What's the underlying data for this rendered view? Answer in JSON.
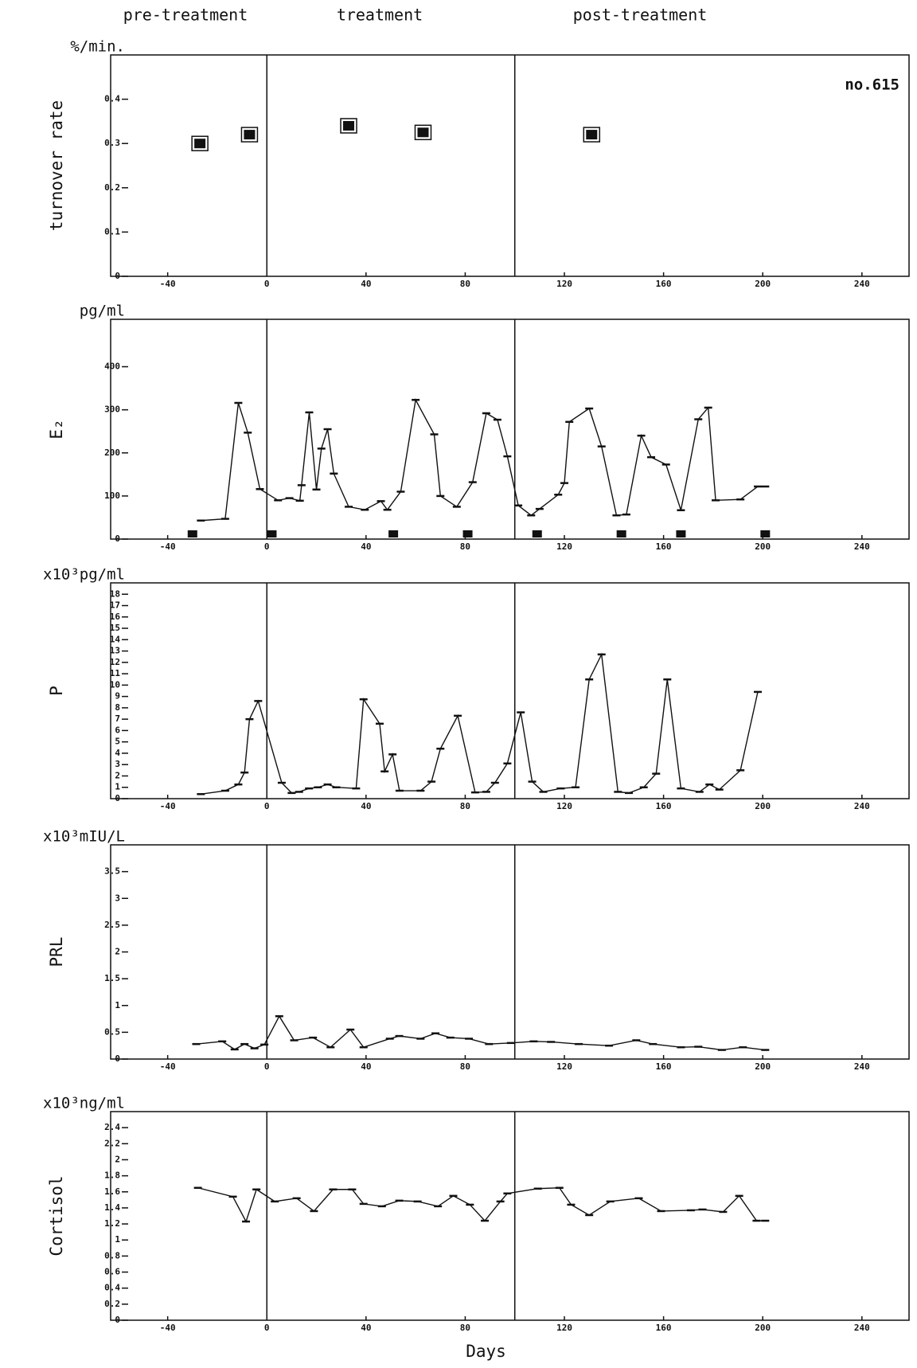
{
  "header": [
    "pre-treatment",
    "treatment",
    "post-treatment"
  ],
  "chart_data": [
    {
      "type": "scatter",
      "units": "%/min.",
      "ylabel": "turnover rate",
      "annotation": "no.615",
      "x": [
        -27,
        -7,
        33,
        63,
        131
      ],
      "values": [
        0.3,
        0.32,
        0.34,
        0.325,
        0.32
      ],
      "xlim": [
        -63,
        259
      ],
      "xticks": [
        -40,
        0,
        40,
        80,
        120,
        160,
        200,
        240
      ],
      "ylim": [
        0,
        0.5
      ],
      "yticks": [
        0,
        0.1,
        0.2,
        0.3,
        0.4
      ],
      "vlines": [
        0,
        100
      ],
      "color": "#111111"
    },
    {
      "type": "line",
      "units": "pg/ml",
      "ylabel": "E₂",
      "x": [
        -26.6,
        -16.8,
        -11.5,
        -7.7,
        -2.8,
        4.5,
        9.1,
        13.3,
        14,
        17.1,
        20,
        22,
        24.5,
        27,
        33,
        39.5,
        46,
        48.6,
        54,
        60,
        67.5,
        70,
        76.6,
        83,
        88.5,
        93,
        97,
        101.4,
        106.6,
        110,
        117.5,
        120,
        122,
        130,
        135,
        141,
        145,
        151,
        155,
        161,
        167,
        174,
        178,
        181,
        191,
        198,
        201
      ],
      "values": [
        43,
        47,
        316,
        247,
        116,
        90,
        95,
        89,
        125,
        294,
        115,
        210,
        255,
        152,
        75,
        68,
        88,
        68,
        110,
        323,
        243,
        100,
        75,
        132,
        292,
        277,
        192,
        78,
        55,
        70,
        103,
        130,
        272,
        303,
        215,
        55,
        57,
        240,
        190,
        173,
        67,
        278,
        305,
        90,
        92,
        122,
        122
      ],
      "event_days": [
        -30,
        2,
        51,
        81,
        109,
        143,
        167,
        201
      ],
      "xlim": [
        -63,
        259
      ],
      "xticks": [
        -40,
        0,
        40,
        80,
        120,
        160,
        200,
        240
      ],
      "ylim": [
        0,
        510
      ],
      "yticks": [
        0,
        100,
        200,
        300,
        400
      ],
      "vlines": [
        0,
        100
      ],
      "color": "#111111"
    },
    {
      "type": "line",
      "units": "x10³pg/ml",
      "ylabel": "P",
      "x": [
        -26.6,
        -16.8,
        -11.5,
        -9,
        -7,
        -3.5,
        6,
        10,
        13,
        17,
        20.6,
        24.5,
        28,
        36,
        39,
        45.5,
        47.5,
        50.7,
        53.5,
        62,
        66.4,
        70,
        77,
        84,
        88.5,
        92,
        97,
        102.4,
        107,
        111.5,
        118.5,
        124.5,
        130,
        135,
        141.6,
        146,
        152,
        157,
        161.5,
        167,
        174.5,
        178.5,
        182.5,
        191,
        198
      ],
      "values": [
        0.4,
        0.7,
        1.25,
        2.3,
        7,
        8.6,
        1.4,
        0.5,
        0.6,
        0.9,
        1,
        1.25,
        1,
        0.9,
        8.75,
        6.6,
        2.4,
        3.9,
        0.7,
        0.7,
        1.5,
        4.4,
        7.3,
        0.55,
        0.6,
        1.4,
        3.1,
        7.6,
        1.5,
        0.6,
        0.9,
        1,
        10.5,
        12.7,
        0.6,
        0.5,
        1,
        2.2,
        10.5,
        0.9,
        0.6,
        1.25,
        0.8,
        2.5,
        9.4
      ],
      "xlim": [
        -63,
        259
      ],
      "xticks": [
        -40,
        0,
        40,
        80,
        120,
        160,
        200,
        240
      ],
      "ylim": [
        0,
        19
      ],
      "yticks": [
        0,
        1,
        2,
        3,
        4,
        5,
        6,
        7,
        8,
        9,
        10,
        11,
        12,
        13,
        14,
        15,
        16,
        17,
        18
      ],
      "vlines": [
        0,
        100
      ],
      "color": "#111111"
    },
    {
      "type": "line",
      "units": "x10³mIU/L",
      "ylabel": "PRL",
      "x": [
        -28.5,
        -18,
        -13,
        -9,
        -5,
        -1,
        5,
        11,
        18.6,
        25.7,
        33.7,
        39,
        49.6,
        53.4,
        62,
        68,
        74,
        81.5,
        89.6,
        98.4,
        107.6,
        114.6,
        125.8,
        138,
        149,
        155.7,
        167,
        174,
        183.5,
        192,
        201
      ],
      "values": [
        0.28,
        0.33,
        0.18,
        0.28,
        0.2,
        0.27,
        0.8,
        0.35,
        0.4,
        0.22,
        0.55,
        0.22,
        0.38,
        0.43,
        0.38,
        0.48,
        0.4,
        0.38,
        0.28,
        0.3,
        0.33,
        0.32,
        0.28,
        0.25,
        0.35,
        0.28,
        0.22,
        0.23,
        0.17,
        0.22,
        0.17
      ],
      "xlim": [
        -63,
        259
      ],
      "xticks": [
        -40,
        0,
        40,
        80,
        120,
        160,
        200,
        240
      ],
      "ylim": [
        0,
        4
      ],
      "yticks": [
        0,
        0.5,
        1,
        1.5,
        2,
        2.5,
        3,
        3.5
      ],
      "vlines": [
        0,
        100
      ],
      "color": "#111111"
    },
    {
      "type": "line",
      "units": "x10³ng/ml",
      "ylabel": "Cortisol",
      "xlabel": "Days",
      "x": [
        -27.8,
        -13.7,
        -8.4,
        -4.2,
        3.2,
        12,
        19,
        26.7,
        34.4,
        39,
        46.4,
        53.4,
        60.8,
        69,
        75.2,
        81.9,
        87.9,
        94.2,
        97,
        109.3,
        118,
        122.7,
        130,
        138.5,
        150,
        159,
        171,
        175.7,
        184,
        190.5,
        197.5,
        201
      ],
      "values": [
        1.65,
        1.54,
        1.23,
        1.63,
        1.48,
        1.52,
        1.36,
        1.63,
        1.63,
        1.45,
        1.42,
        1.49,
        1.48,
        1.42,
        1.55,
        1.44,
        1.24,
        1.48,
        1.58,
        1.64,
        1.65,
        1.44,
        1.31,
        1.48,
        1.52,
        1.36,
        1.37,
        1.38,
        1.35,
        1.55,
        1.24,
        1.24
      ],
      "xlim": [
        -63,
        259
      ],
      "xticks": [
        -40,
        0,
        40,
        80,
        120,
        160,
        200,
        240
      ],
      "ylim": [
        0,
        2.6
      ],
      "yticks": [
        0,
        0.2,
        0.4,
        0.6,
        0.8,
        1,
        1.2,
        1.4,
        1.6,
        1.8,
        2,
        2.2,
        2.4
      ],
      "vlines": [
        0,
        100
      ],
      "color": "#111111"
    }
  ]
}
